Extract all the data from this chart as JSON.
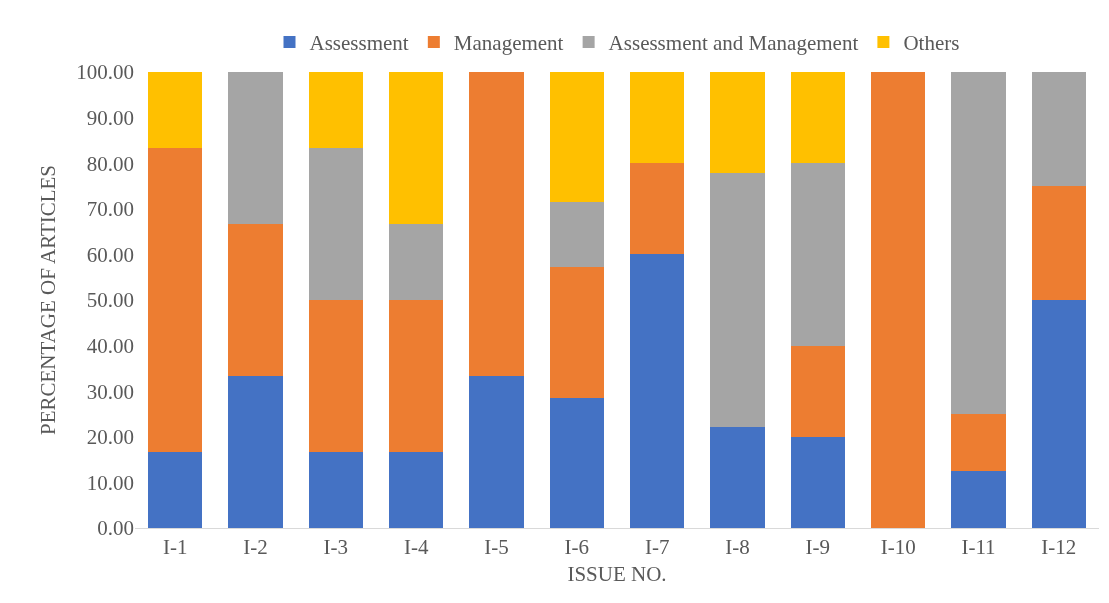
{
  "chart_data": {
    "type": "bar",
    "stacked": true,
    "xlabel": "ISSUE NO.",
    "ylabel": "PERCENTAGE OF ARTICLES",
    "legend": "top",
    "grid": false,
    "categories": [
      "I-1",
      "I-2",
      "I-3",
      "I-4",
      "I-5",
      "I-6",
      "I-7",
      "I-8",
      "I-9",
      "I-10",
      "I-11",
      "I-12"
    ],
    "ylim": [
      0,
      100
    ],
    "yticks": [
      {
        "value": 0,
        "label": "0.00"
      },
      {
        "value": 10,
        "label": "10.00"
      },
      {
        "value": 20,
        "label": "20.00"
      },
      {
        "value": 30,
        "label": "30.00"
      },
      {
        "value": 40,
        "label": "40.00"
      },
      {
        "value": 50,
        "label": "50.00"
      },
      {
        "value": 60,
        "label": "60.00"
      },
      {
        "value": 70,
        "label": "70.00"
      },
      {
        "value": 80,
        "label": "80.00"
      },
      {
        "value": 90,
        "label": "90.00"
      },
      {
        "value": 100,
        "label": "100.00"
      }
    ],
    "series": [
      {
        "name": "Assessment",
        "color": "#4472c4",
        "values": [
          16.7,
          33.3,
          16.7,
          16.7,
          33.3,
          28.6,
          60,
          22.2,
          20,
          0,
          12.5,
          50
        ]
      },
      {
        "name": "Management",
        "color": "#ed7d31",
        "values": [
          66.6,
          33.4,
          33.3,
          33.3,
          66.7,
          28.6,
          20,
          0,
          20,
          100,
          12.5,
          25
        ]
      },
      {
        "name": "Assessment and Management",
        "color": "#a5a5a5",
        "values": [
          0,
          33.3,
          33.3,
          16.7,
          0,
          14.3,
          0,
          55.6,
          40,
          0,
          75,
          25
        ]
      },
      {
        "name": "Others",
        "color": "#ffc000",
        "values": [
          16.7,
          0,
          16.7,
          33.3,
          0,
          28.5,
          20,
          22.2,
          20,
          0,
          0,
          0
        ]
      }
    ]
  }
}
